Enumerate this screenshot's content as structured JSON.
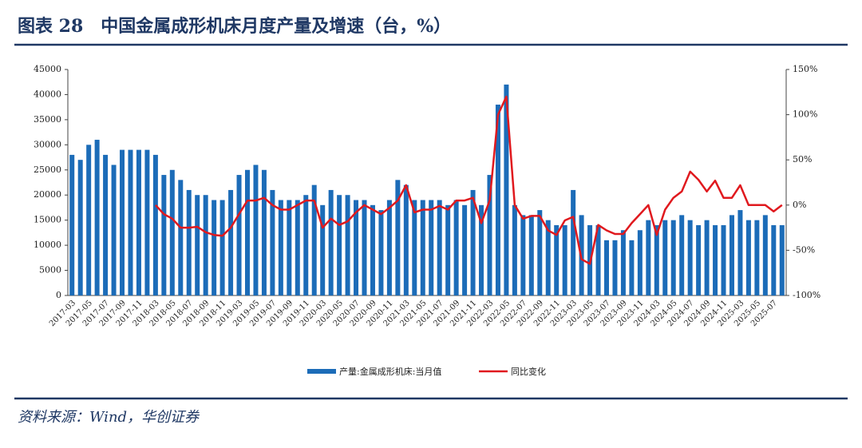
{
  "chart_data": {
    "type": "bar_line",
    "title": "图表 28　中国金属成形机床月度产量及增速（台，%）",
    "source": "资料来源：Wind，华创证券",
    "categories": [
      "2017-03",
      null,
      "2017-05",
      null,
      "2017-07",
      null,
      "2017-09",
      null,
      "2017-11",
      null,
      "2018-03",
      null,
      "2018-05",
      null,
      "2018-07",
      null,
      "2018-09",
      null,
      "2018-11",
      null,
      "2019-03",
      null,
      "2019-05",
      null,
      "2019-07",
      null,
      "2019-09",
      null,
      "2019-11",
      null,
      "2020-03",
      null,
      "2020-05",
      null,
      "2020-07",
      null,
      "2020-09",
      null,
      "2020-11",
      null,
      "2021-03",
      null,
      "2021-05",
      null,
      "2021-07",
      null,
      "2021-09",
      null,
      "2021-11",
      null,
      "2022-03",
      null,
      "2022-05",
      null,
      "2022-07",
      null,
      "2022-09",
      null,
      "2022-11",
      null,
      "2023-03",
      null,
      "2023-05",
      null,
      "2023-07",
      null,
      "2023-09",
      null,
      "2023-11",
      null,
      "2024-03",
      null,
      "2024-05",
      null,
      "2024-07",
      null,
      "2024-09",
      null,
      "2024-11",
      null,
      "2025-03",
      null,
      "2025-05",
      null,
      "2025-07",
      null
    ],
    "series": [
      {
        "name": "产量:金属成形机床:当月值",
        "color": "#1c6cb8",
        "kind": "bar",
        "values": [
          28000,
          27000,
          30000,
          31000,
          28000,
          26000,
          29000,
          29000,
          29000,
          29000,
          28000,
          24000,
          25000,
          23000,
          21000,
          20000,
          20000,
          19000,
          19000,
          21000,
          24000,
          25000,
          26000,
          25000,
          21000,
          19000,
          19000,
          19000,
          20000,
          22000,
          18000,
          21000,
          20000,
          20000,
          19000,
          19000,
          18000,
          17000,
          19000,
          23000,
          22000,
          19000,
          19000,
          19000,
          19000,
          18000,
          19000,
          18000,
          21000,
          18000,
          24000,
          38000,
          42000,
          18000,
          16000,
          16000,
          17000,
          15000,
          14000,
          14000,
          21000,
          16000,
          14000,
          14000,
          11000,
          11000,
          13000,
          11000,
          13000,
          15000,
          14000,
          15000,
          15000,
          16000,
          15000,
          14000,
          15000,
          14000,
          14000,
          16000,
          17000,
          15000,
          15000,
          16000,
          14000,
          14000
        ]
      },
      {
        "name": "同比变化",
        "color": "#e0191e",
        "kind": "line",
        "axis": "y2",
        "values": [
          null,
          null,
          null,
          null,
          null,
          null,
          null,
          null,
          null,
          null,
          0,
          -10,
          -15,
          -25,
          -25,
          -24,
          -30,
          -33,
          -34,
          -25,
          -10,
          5,
          5,
          8,
          0,
          -5,
          -5,
          0,
          5,
          5,
          -25,
          -15,
          -22,
          -18,
          -8,
          0,
          -5,
          -10,
          -3,
          5,
          22,
          -8,
          -5,
          -5,
          -1,
          -5,
          5,
          5,
          8,
          -20,
          5,
          100,
          120,
          0,
          -15,
          -12,
          -12,
          -28,
          -33,
          -17,
          -13,
          -60,
          -65,
          -22,
          -28,
          -32,
          -32,
          -20,
          -10,
          0,
          -33,
          -5,
          8,
          15,
          37,
          28,
          15,
          27,
          8,
          8,
          22,
          0,
          0,
          0,
          -7,
          0
        ]
      }
    ],
    "ylim": [
      0,
      45000
    ],
    "yticks": [
      0,
      5000,
      10000,
      15000,
      20000,
      25000,
      30000,
      35000,
      40000,
      45000
    ],
    "y2lim": [
      -100,
      150
    ],
    "y2ticks": [
      {
        "value": -100,
        "label": "-100%"
      },
      {
        "value": -50,
        "label": "-50%"
      },
      {
        "value": 0,
        "label": "0%"
      },
      {
        "value": 50,
        "label": "50%"
      },
      {
        "value": 100,
        "label": "100%"
      },
      {
        "value": 150,
        "label": "150%"
      }
    ],
    "legend": "bottom"
  }
}
